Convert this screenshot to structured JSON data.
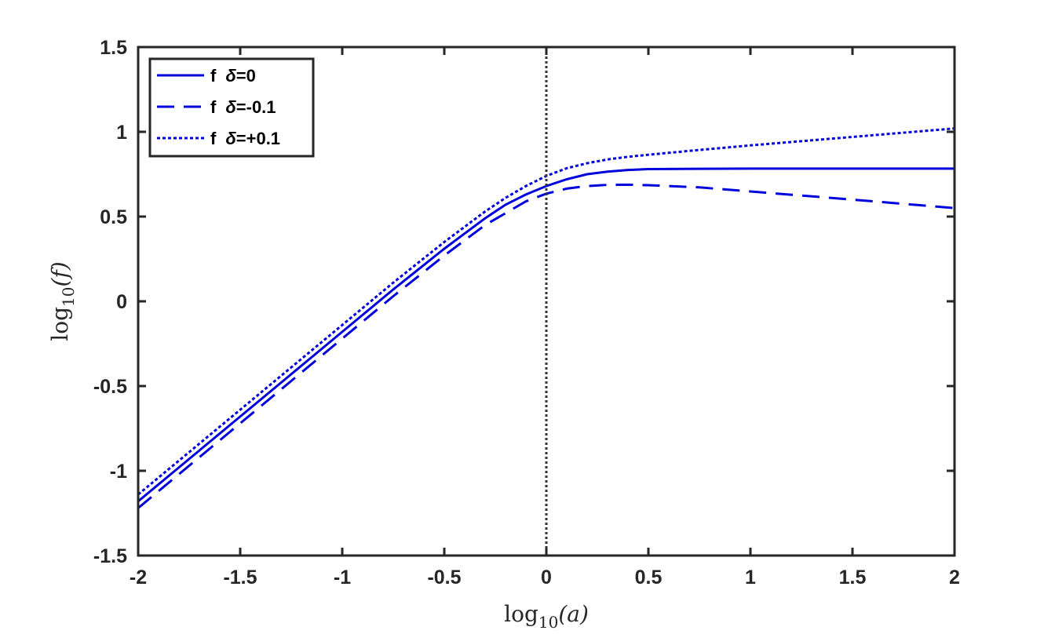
{
  "chart_data": {
    "type": "line",
    "title": "",
    "xlabel": {
      "base": "log",
      "sub": "10",
      "arg": "(a)"
    },
    "ylabel": {
      "base": "log",
      "sub": "10",
      "arg": "(f)"
    },
    "xlim": [
      -2,
      2
    ],
    "ylim": [
      -1.5,
      1.5
    ],
    "grid": false,
    "legend_position": "top-left",
    "x_ticks": [
      {
        "value": -2,
        "label": "-2"
      },
      {
        "value": -1.5,
        "label": "-1.5"
      },
      {
        "value": -1,
        "label": "-1"
      },
      {
        "value": -0.5,
        "label": "-0.5"
      },
      {
        "value": 0,
        "label": "0"
      },
      {
        "value": 0.5,
        "label": "0.5"
      },
      {
        "value": 1,
        "label": "1"
      },
      {
        "value": 1.5,
        "label": "1.5"
      },
      {
        "value": 2,
        "label": "2"
      }
    ],
    "y_ticks": [
      {
        "value": 1.5,
        "label": "1.5"
      },
      {
        "value": 1,
        "label": "1"
      },
      {
        "value": 0.5,
        "label": "0.5"
      },
      {
        "value": 0,
        "label": "0"
      },
      {
        "value": -0.5,
        "label": "-0.5"
      },
      {
        "value": -1,
        "label": "-1"
      },
      {
        "value": -1.5,
        "label": "-1.5"
      }
    ],
    "reference_line": {
      "x": 0,
      "style": "dotted",
      "color": "#333333"
    },
    "series": [
      {
        "name_prefix": "f",
        "name_symbol": "δ",
        "name_suffix": "=0",
        "style": "solid",
        "color": "#0000dd",
        "x": [
          -2.0,
          -1.75,
          -1.5,
          -1.25,
          -1.0,
          -0.75,
          -0.5,
          -0.4,
          -0.3,
          -0.2,
          -0.1,
          0.0,
          0.1,
          0.2,
          0.3,
          0.4,
          0.5,
          0.75,
          1.0,
          1.25,
          1.5,
          1.75,
          2.0
        ],
        "y": [
          -1.18,
          -0.93,
          -0.68,
          -0.43,
          -0.18,
          0.07,
          0.31,
          0.4,
          0.49,
          0.57,
          0.63,
          0.68,
          0.72,
          0.75,
          0.765,
          0.775,
          0.78,
          0.782,
          0.783,
          0.783,
          0.783,
          0.783,
          0.783
        ]
      },
      {
        "name_prefix": "f",
        "name_symbol": "δ",
        "name_suffix": "=-0.1",
        "style": "dashed",
        "color": "#0000dd",
        "x": [
          -2.0,
          -1.75,
          -1.5,
          -1.25,
          -1.0,
          -0.75,
          -0.5,
          -0.4,
          -0.3,
          -0.2,
          -0.1,
          0.0,
          0.1,
          0.2,
          0.3,
          0.4,
          0.5,
          0.75,
          1.0,
          1.25,
          1.5,
          1.75,
          2.0
        ],
        "y": [
          -1.22,
          -0.97,
          -0.72,
          -0.47,
          -0.22,
          0.03,
          0.27,
          0.36,
          0.45,
          0.52,
          0.59,
          0.635,
          0.665,
          0.68,
          0.687,
          0.688,
          0.685,
          0.672,
          0.648,
          0.624,
          0.6,
          0.575,
          0.55
        ]
      },
      {
        "name_prefix": "f",
        "name_symbol": "δ",
        "name_suffix": "=+0.1",
        "style": "dotted",
        "color": "#0000dd",
        "x": [
          -2.0,
          -1.75,
          -1.5,
          -1.25,
          -1.0,
          -0.75,
          -0.5,
          -0.4,
          -0.3,
          -0.2,
          -0.1,
          0.0,
          0.1,
          0.2,
          0.3,
          0.4,
          0.5,
          0.75,
          1.0,
          1.25,
          1.5,
          1.75,
          2.0
        ],
        "y": [
          -1.14,
          -0.89,
          -0.64,
          -0.39,
          -0.14,
          0.11,
          0.35,
          0.44,
          0.53,
          0.61,
          0.68,
          0.74,
          0.785,
          0.815,
          0.837,
          0.853,
          0.865,
          0.893,
          0.92,
          0.945,
          0.97,
          0.995,
          1.02
        ]
      }
    ]
  }
}
